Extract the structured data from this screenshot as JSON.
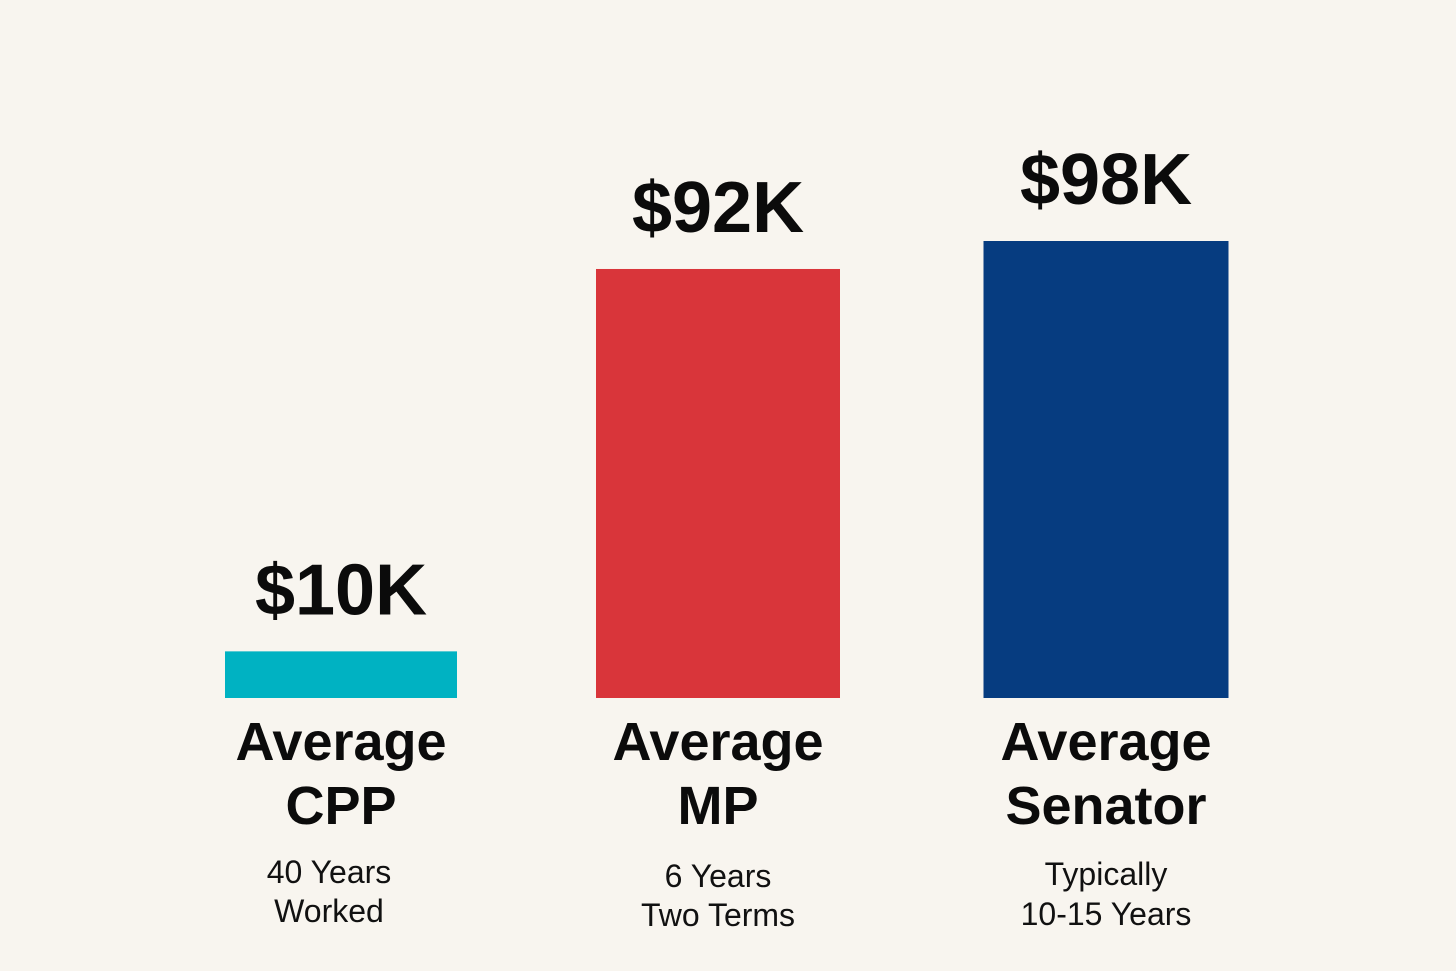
{
  "chart_data": {
    "type": "bar",
    "categories": [
      "Average CPP",
      "Average MP",
      "Average Senator"
    ],
    "values": [
      10,
      92,
      98
    ],
    "unit": "K",
    "value_labels": [
      "$10K",
      "$92K",
      "$98K"
    ],
    "category_lines": [
      [
        "Average",
        "CPP"
      ],
      [
        "Average",
        "MP"
      ],
      [
        "Average",
        "Senator"
      ]
    ],
    "sub_lines": [
      [
        "40 Years",
        "Worked"
      ],
      [
        "6 Years",
        "Two Terms"
      ],
      [
        "Typically",
        "10-15 Years"
      ]
    ],
    "colors": [
      "#00b2c2",
      "#d9353a",
      "#063c80"
    ],
    "title": "",
    "xlabel": "",
    "ylabel": "",
    "grid": false,
    "legend": "none"
  }
}
